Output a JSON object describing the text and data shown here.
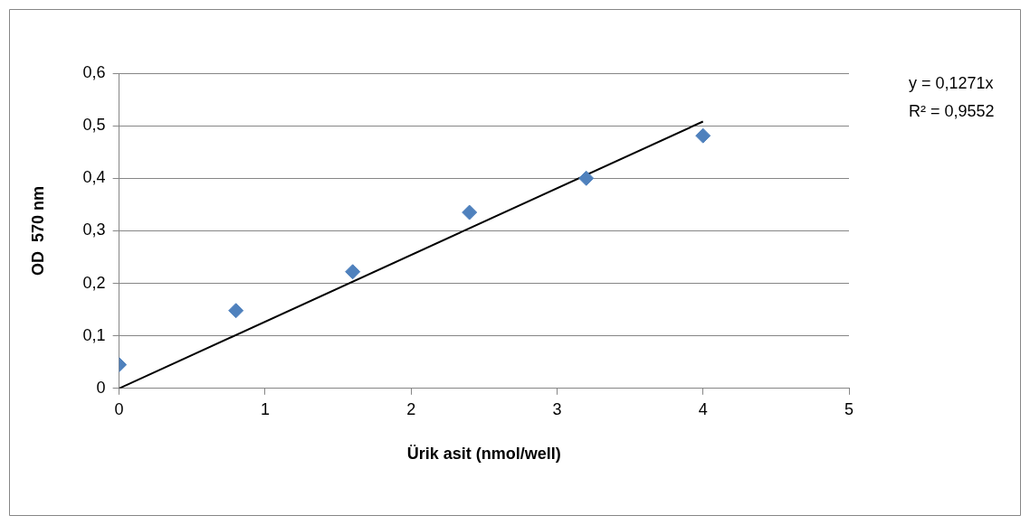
{
  "chart_data": {
    "type": "scatter",
    "xlabel": "Ürik asit (nmol/well)",
    "ylabel": "OD  570 nm",
    "xlim": [
      0,
      5
    ],
    "xticks": [
      0,
      1,
      2,
      3,
      4,
      5
    ],
    "ylim": [
      0,
      0.6
    ],
    "yticks": [
      0,
      {
        "value": 0.1,
        "label": "0,1"
      },
      {
        "value": 0.2,
        "label": "0,2"
      },
      {
        "value": 0.3,
        "label": "0,3"
      },
      {
        "value": 0.4,
        "label": "0,4"
      },
      {
        "value": 0.5,
        "label": "0,5"
      },
      {
        "value": 0.6,
        "label": "0,6"
      }
    ],
    "grid": "y",
    "legend": false,
    "series": [
      {
        "marker": "diamond",
        "color": "#4f81bd",
        "x": [
          0,
          0.8,
          1.6,
          2.4,
          3.2,
          4
        ],
        "values": [
          0.045,
          0.148,
          0.222,
          0.335,
          0.4,
          0.481
        ]
      },
      {
        "type": "line",
        "color": "#000000",
        "x": [
          0,
          4
        ],
        "values": [
          0,
          0.508
        ]
      }
    ],
    "annotations": [
      "y = 0,1271x",
      "R² = 0,9552"
    ]
  }
}
